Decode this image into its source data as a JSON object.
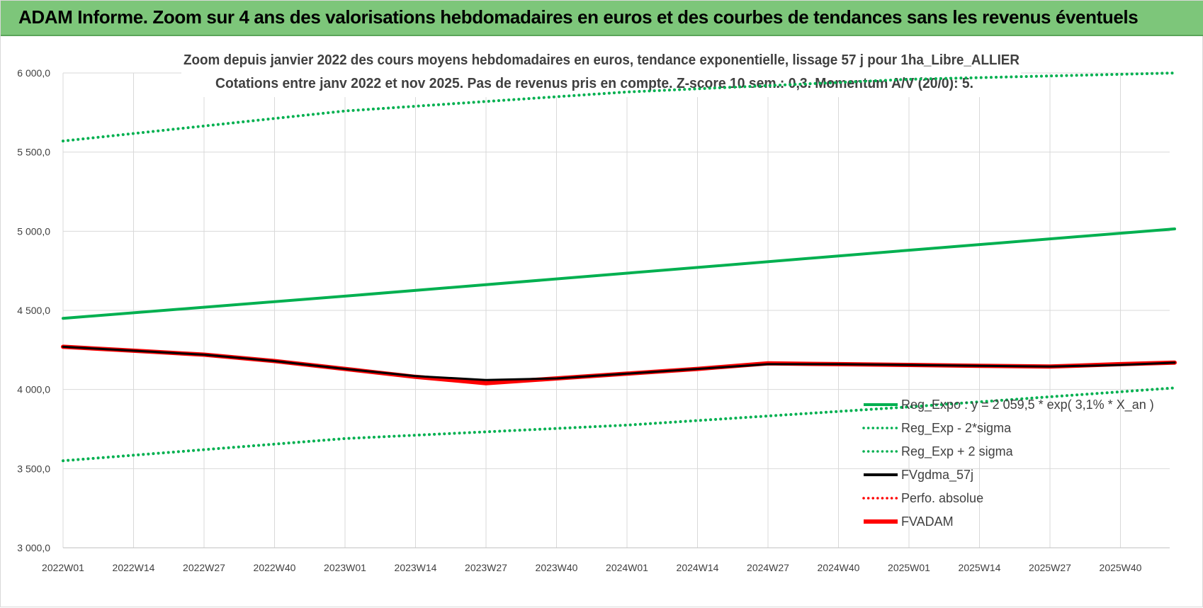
{
  "banner": {
    "title": "ADAM Informe. Zoom sur 4 ans des valorisations hebdomadaires en euros et des courbes de tendances sans les revenus éventuels",
    "bg_color": "#7dc67a"
  },
  "chart_data": {
    "type": "line",
    "title_line1": "Zoom depuis janvier 2022 des cours moyens hebdomadaires en euros, tendance exponentielle, lissage 57 j pour 1ha_Libre_ALLIER",
    "title_line2": "Cotations entre janv 2022 et nov 2025. Pas de revenus pris en compte. Z-score 10 sem.: 0,3. Momentum A/V (20/0): 5.",
    "ylim": [
      3000,
      6000
    ],
    "ytick_values": [
      3000,
      3500,
      4000,
      4500,
      5000,
      5500,
      6000
    ],
    "ytick_labels": [
      "3 000,0",
      "3 500,0",
      "4 000,0",
      "4 500,0",
      "5 000,0",
      "5 500,0",
      "6 000,0"
    ],
    "x_tick_labels": [
      "2022W01",
      "2022W14",
      "2022W27",
      "2022W40",
      "2023W01",
      "2023W14",
      "2023W27",
      "2023W40",
      "2024W01",
      "2024W14",
      "2024W27",
      "2024W40",
      "2025W01",
      "2025W14",
      "2025W27",
      "2025W40"
    ],
    "weeks_between_ticks": 13,
    "total_weeks": 205,
    "grid": true,
    "legend_position": "lower-right",
    "series": [
      {
        "name": "Reg_Expo : y = 2 059,5 * exp( 3,1% * X_an )",
        "color": "#00b050",
        "style": "solid",
        "width": 4,
        "x": [
          0,
          52,
          104,
          156,
          205
        ],
        "y": [
          4450,
          4590,
          4735,
          4880,
          5015
        ]
      },
      {
        "name": "Reg_Exp - 2*sigma",
        "color": "#00b050",
        "style": "dotted",
        "width": 3,
        "x": [
          0,
          52,
          104,
          156,
          205
        ],
        "y": [
          3550,
          3690,
          3775,
          3890,
          4010
        ]
      },
      {
        "name": "Reg_Exp + 2 sigma",
        "color": "#00b050",
        "style": "dotted",
        "width": 3,
        "x": [
          0,
          52,
          104,
          156,
          205
        ],
        "y": [
          5570,
          5760,
          5880,
          5960,
          6000
        ]
      },
      {
        "name": "FVgdma_57j",
        "color": "#000000",
        "style": "solid",
        "width": 4,
        "x": [
          0,
          13,
          26,
          39,
          52,
          65,
          78,
          91,
          104,
          117,
          130,
          143,
          156,
          169,
          182,
          195,
          205
        ],
        "y": [
          4270,
          4245,
          4220,
          4180,
          4130,
          4085,
          4060,
          4070,
          4100,
          4130,
          4160,
          4160,
          4155,
          4150,
          4145,
          4155,
          4170
        ]
      },
      {
        "name": "Perfo. absolue",
        "color": "#ff0000",
        "style": "dotted",
        "width": 3,
        "x": [],
        "y": []
      },
      {
        "name": "FVADAM",
        "color": "#ff0000",
        "style": "solid",
        "width": 6,
        "x": [
          0,
          13,
          26,
          39,
          52,
          65,
          78,
          91,
          104,
          117,
          130,
          143,
          156,
          169,
          182,
          195,
          205
        ],
        "y": [
          4270,
          4245,
          4220,
          4180,
          4130,
          4080,
          4040,
          4070,
          4100,
          4130,
          4165,
          4160,
          4155,
          4150,
          4145,
          4160,
          4170
        ]
      }
    ]
  }
}
